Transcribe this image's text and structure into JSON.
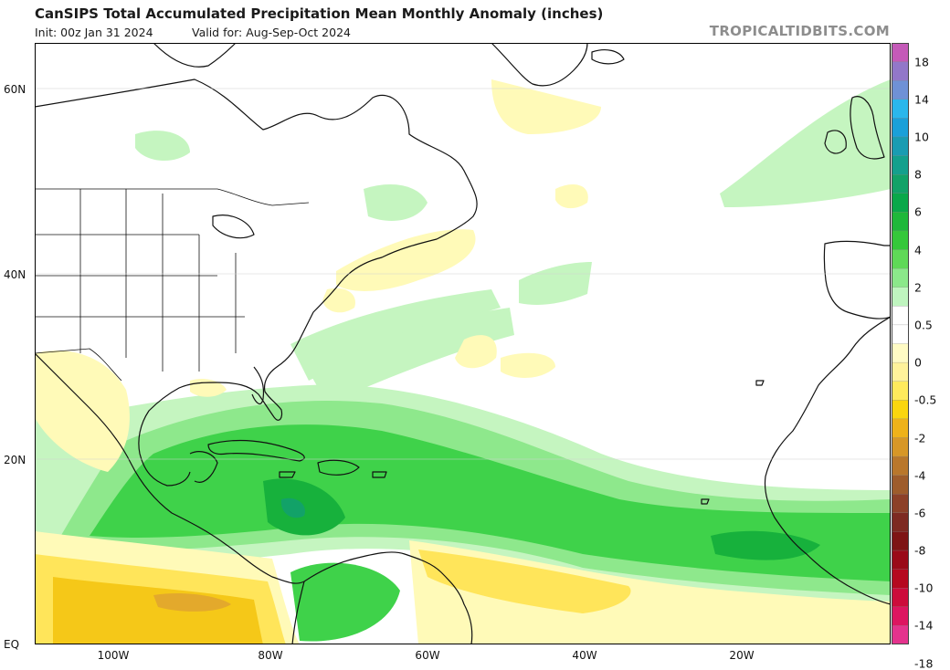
{
  "header": {
    "title": "CanSIPS Total Accumulated Precipitation Mean Monthly Anomaly (inches)",
    "init": "Init: 00z Jan 31 2024",
    "valid": "Valid for: Aug-Sep-Oct 2024",
    "brand": "TROPICALTIDBITS.COM"
  },
  "axes": {
    "lat_labels": [
      "60N",
      "40N",
      "20N",
      "EQ"
    ],
    "lon_labels": [
      "100W",
      "80W",
      "60W",
      "40W",
      "20W"
    ]
  },
  "colorbar": {
    "labels": [
      "18",
      "14",
      "10",
      "8",
      "6",
      "4",
      "2",
      "0.5",
      "0",
      "-0.5",
      "-2",
      "-4",
      "-6",
      "-8",
      "-10",
      "-14",
      "-18"
    ],
    "colors": [
      "#c45ab8",
      "#9277c9",
      "#6f91d6",
      "#2ab7ec",
      "#1ba0d9",
      "#1a9cb2",
      "#14a08d",
      "#12a268",
      "#0aa84a",
      "#1fb83a",
      "#35c83a",
      "#5fd957",
      "#8be88a",
      "#bff5bf",
      "#ffffff",
      "#ffffff",
      "#fffbc4",
      "#fff29b",
      "#ffea5c",
      "#fad60e",
      "#eeb21a",
      "#d79727",
      "#b9772b",
      "#9e5c2b",
      "#8c4028",
      "#7d2a22",
      "#7e1515",
      "#9a0a18",
      "#b5081f",
      "#cc0c3b",
      "#dd1560",
      "#e4338d"
    ]
  },
  "regions": {
    "colors": {
      "green_light": "#c5f5c0",
      "green_mid": "#8ee88c",
      "green": "#3fd24a",
      "green_dark": "#17b13c",
      "yellow_light": "#fffab8",
      "yellow": "#ffe55a",
      "gold": "#f5c818",
      "orange": "#e3a92c"
    }
  }
}
